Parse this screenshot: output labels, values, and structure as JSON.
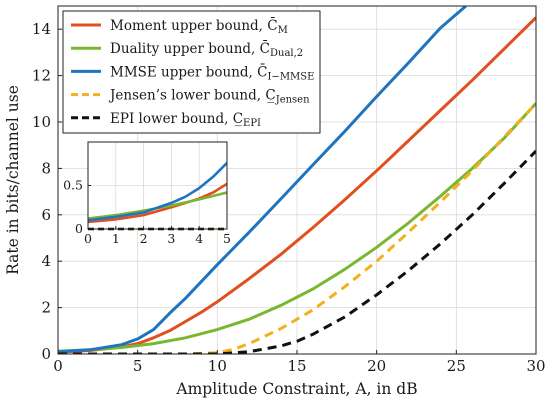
{
  "chart_data": {
    "type": "line",
    "title": "",
    "xlabel": "Amplitude Constraint, A, in dB",
    "ylabel": "Rate in bits/channel use",
    "xlim": [
      0,
      30
    ],
    "ylim": [
      0,
      15
    ],
    "x_ticks": [
      0,
      5,
      10,
      15,
      20,
      25,
      30
    ],
    "y_ticks": [
      0,
      2,
      4,
      6,
      8,
      10,
      12,
      14
    ],
    "grid": true,
    "legend": "top-left",
    "series": [
      {
        "name": "Moment upper bound, C̄M",
        "name_main": "Moment upper bound, ",
        "name_sym": "C̄",
        "name_sub": "M",
        "color": "#e0501e",
        "dash": "solid",
        "x": [
          0,
          2,
          4,
          5,
          6,
          7,
          8,
          9,
          10,
          12,
          14,
          16,
          18,
          20,
          22,
          24,
          26,
          28,
          30
        ],
        "y": [
          0.08,
          0.15,
          0.3,
          0.45,
          0.7,
          1.0,
          1.4,
          1.8,
          2.25,
          3.25,
          4.3,
          5.45,
          6.65,
          7.9,
          9.2,
          10.5,
          11.8,
          13.15,
          14.5
        ]
      },
      {
        "name": "Duality upper bound, C̄Dual,2",
        "name_main": "Duality upper bound, ",
        "name_sym": "C̄",
        "name_sub": "Dual,2",
        "color": "#7ab731",
        "dash": "solid",
        "x": [
          0,
          2,
          4,
          6,
          8,
          10,
          12,
          14,
          16,
          18,
          20,
          22,
          24,
          26,
          28,
          30
        ],
        "y": [
          0.12,
          0.18,
          0.28,
          0.45,
          0.7,
          1.05,
          1.5,
          2.1,
          2.8,
          3.65,
          4.6,
          5.65,
          6.8,
          8.0,
          9.3,
          10.8
        ]
      },
      {
        "name": "MMSE upper bound, C̄I−MMSE",
        "name_main": "MMSE upper bound, ",
        "name_sym": "C̄",
        "name_sub": "I−MMSE",
        "color": "#1f74c0",
        "dash": "solid",
        "x": [
          0,
          2,
          4,
          5,
          6,
          7,
          8,
          10,
          12,
          14,
          16,
          18,
          20,
          22,
          24,
          25.6
        ],
        "y": [
          0.1,
          0.18,
          0.4,
          0.65,
          1.05,
          1.75,
          2.4,
          3.85,
          5.25,
          6.7,
          8.15,
          9.6,
          11.1,
          12.55,
          14.05,
          15.0
        ]
      },
      {
        "name": "Jensen's lower bound, C̲Jensen",
        "name_main": "Jensen’s lower bound, ",
        "name_sym": "C̲",
        "name_sub": "Jensen",
        "color": "#f2b01e",
        "dash": "dashed",
        "x": [
          0,
          8,
          10,
          11,
          12,
          14,
          16,
          18,
          20,
          22,
          24,
          26,
          28,
          30
        ],
        "y": [
          0,
          0,
          0.05,
          0.2,
          0.45,
          1.1,
          1.9,
          2.9,
          4.0,
          5.25,
          6.55,
          7.9,
          9.35,
          10.8
        ]
      },
      {
        "name": "EPI lower bound, C̲EPI",
        "name_main": "EPI lower bound, ",
        "name_sym": "C̲",
        "name_sub": "EPI",
        "color": "#111111",
        "dash": "dashed",
        "x": [
          0,
          10,
          12,
          14,
          15,
          16,
          18,
          20,
          22,
          24,
          26,
          28,
          30
        ],
        "y": [
          0,
          0,
          0.1,
          0.35,
          0.55,
          0.85,
          1.6,
          2.55,
          3.6,
          4.75,
          6.0,
          7.35,
          8.75
        ]
      }
    ],
    "inset": {
      "xlim": [
        0,
        5
      ],
      "ylim": [
        0,
        1.0
      ],
      "x_ticks": [
        0,
        1,
        2,
        3,
        4,
        5
      ],
      "y_ticks": [
        0,
        0.5
      ],
      "grid": true,
      "series": [
        {
          "ref": 0,
          "x": [
            0,
            1,
            2,
            3,
            4,
            4.5,
            5
          ],
          "y": [
            0.08,
            0.11,
            0.16,
            0.25,
            0.35,
            0.42,
            0.52
          ]
        },
        {
          "ref": 1,
          "x": [
            0,
            1,
            2,
            3,
            4,
            5
          ],
          "y": [
            0.12,
            0.16,
            0.21,
            0.27,
            0.34,
            0.42
          ]
        },
        {
          "ref": 2,
          "x": [
            0,
            1,
            2,
            3,
            3.5,
            4,
            4.5,
            5
          ],
          "y": [
            0.1,
            0.14,
            0.19,
            0.3,
            0.37,
            0.47,
            0.6,
            0.76
          ]
        },
        {
          "ref": 3,
          "x": [
            0,
            5
          ],
          "y": [
            0,
            0
          ]
        },
        {
          "ref": 4,
          "x": [
            0,
            5
          ],
          "y": [
            0,
            0
          ]
        }
      ]
    }
  }
}
